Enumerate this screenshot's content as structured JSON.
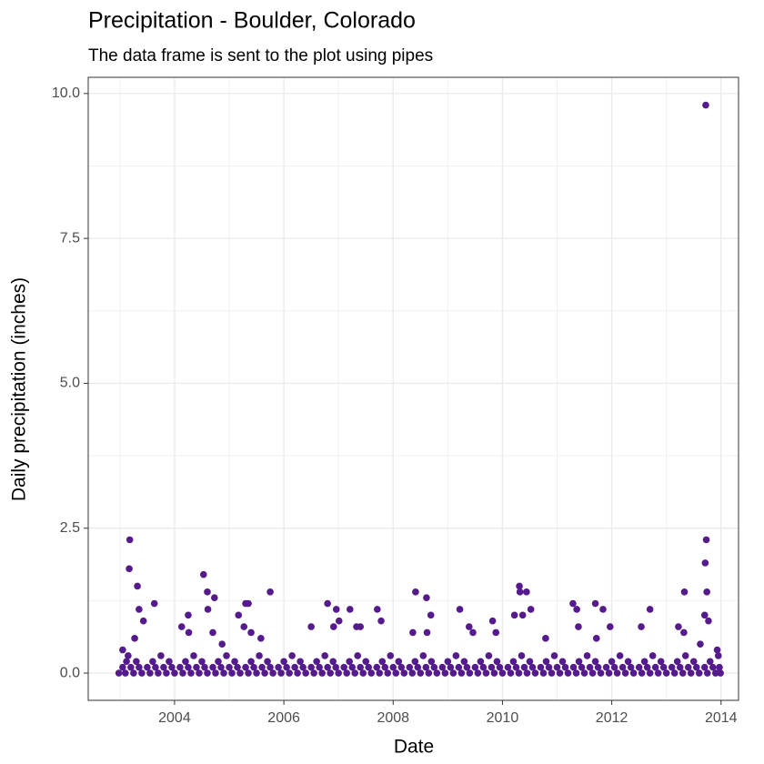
{
  "chart_data": {
    "type": "scatter",
    "title": "Precipitation - Boulder, Colorado",
    "subtitle": "The data frame is sent to the plot using pipes",
    "x_label": "Date",
    "y_label": "Daily precipitation (inches)",
    "color": "#551A8B",
    "grid": true,
    "xlim": [
      2002.42,
      2014.32
    ],
    "ylim": [
      -0.47,
      10.28
    ],
    "xticks": [
      2004,
      2006,
      2008,
      2010,
      2012,
      2014
    ],
    "yticks": [
      {
        "value": 0,
        "label": "0.0"
      },
      2.5,
      {
        "value": 5,
        "label": "5.0"
      },
      7.5,
      {
        "value": 10,
        "label": "10.0"
      }
    ],
    "x": [
      2003.18,
      2003.17,
      2003.32,
      2003.35,
      2003.43,
      2003.63,
      2003.27,
      2003.05,
      2004.53,
      2004.6,
      2004.73,
      2004.61,
      2004.25,
      2004.13,
      2004.26,
      2004.7,
      2004.87,
      2005.17,
      2005.3,
      2005.35,
      2005.27,
      2005.4,
      2005.75,
      2005.58,
      2006.5,
      2006.8,
      2006.96,
      2006.91,
      2007.01,
      2007.21,
      2007.33,
      2007.4,
      2007.71,
      2007.78,
      2008.41,
      2008.36,
      2008.61,
      2008.69,
      2008.62,
      2009.22,
      2009.39,
      2009.46,
      2009.82,
      2009.88,
      2010.31,
      2010.32,
      2010.44,
      2010.22,
      2010.37,
      2010.52,
      2010.79,
      2011.29,
      2011.36,
      2011.39,
      2011.7,
      2011.84,
      2011.97,
      2011.72,
      2012.54,
      2012.7,
      2013.22,
      2013.32,
      2013.33,
      2013.72,
      2013.73,
      2013.71,
      2013.74,
      2013.7,
      2013.77,
      2013.62,
      2013.93,
      2002.98,
      2003.1,
      2003.25,
      2003.4,
      2003.55,
      2003.7,
      2003.85,
      2004.0,
      2004.15,
      2004.3,
      2004.45,
      2004.6,
      2004.75,
      2004.9,
      2005.05,
      2005.2,
      2005.35,
      2005.5,
      2005.65,
      2005.8,
      2005.95,
      2006.1,
      2006.25,
      2006.4,
      2006.55,
      2006.7,
      2006.85,
      2007.0,
      2007.15,
      2007.3,
      2007.45,
      2007.6,
      2007.75,
      2007.9,
      2008.05,
      2008.2,
      2008.35,
      2008.5,
      2008.65,
      2008.8,
      2008.95,
      2009.1,
      2009.25,
      2009.4,
      2009.55,
      2009.7,
      2009.85,
      2010.0,
      2010.15,
      2010.3,
      2010.45,
      2010.6,
      2010.75,
      2010.9,
      2011.05,
      2011.2,
      2011.35,
      2011.5,
      2011.65,
      2011.8,
      2011.95,
      2012.1,
      2012.25,
      2012.4,
      2012.55,
      2012.7,
      2012.85,
      2013.0,
      2013.15,
      2013.3,
      2013.45,
      2013.6,
      2013.75,
      2013.9,
      2013.99,
      2003.05,
      2003.2,
      2003.35,
      2003.5,
      2003.65,
      2003.8,
      2003.95,
      2004.1,
      2004.25,
      2004.4,
      2004.55,
      2004.7,
      2004.85,
      2005.0,
      2005.15,
      2005.3,
      2005.45,
      2005.6,
      2005.75,
      2005.9,
      2006.05,
      2006.2,
      2006.35,
      2006.5,
      2006.65,
      2006.8,
      2006.95,
      2007.1,
      2007.25,
      2007.4,
      2007.55,
      2007.7,
      2007.85,
      2008.0,
      2008.15,
      2008.3,
      2008.45,
      2008.6,
      2008.75,
      2008.9,
      2009.05,
      2009.2,
      2009.35,
      2009.5,
      2009.65,
      2009.8,
      2009.95,
      2010.1,
      2010.25,
      2010.4,
      2010.55,
      2010.7,
      2010.85,
      2011.0,
      2011.15,
      2011.3,
      2011.45,
      2011.6,
      2011.75,
      2011.9,
      2012.05,
      2012.2,
      2012.35,
      2012.5,
      2012.65,
      2012.8,
      2012.95,
      2013.1,
      2013.25,
      2013.4,
      2013.55,
      2013.7,
      2013.85,
      2013.97,
      2003.12,
      2003.3,
      2003.6,
      2003.9,
      2004.2,
      2004.5,
      2004.8,
      2005.1,
      2005.4,
      2005.7,
      2006.0,
      2006.3,
      2006.6,
      2006.9,
      2007.2,
      2007.5,
      2007.8,
      2008.1,
      2008.4,
      2008.7,
      2009.0,
      2009.3,
      2009.6,
      2009.9,
      2010.2,
      2010.5,
      2010.8,
      2011.1,
      2011.4,
      2011.7,
      2012.0,
      2012.3,
      2012.6,
      2012.9,
      2013.2,
      2013.5,
      2013.8,
      2003.15,
      2003.75,
      2004.35,
      2004.95,
      2005.55,
      2006.15,
      2006.75,
      2007.35,
      2007.95,
      2008.55,
      2009.15,
      2009.75,
      2010.35,
      2010.95,
      2011.55,
      2012.15,
      2012.75,
      2013.35,
      2013.95
    ],
    "values": [
      2.3,
      1.8,
      1.5,
      1.1,
      0.9,
      1.2,
      0.6,
      0.4,
      1.7,
      1.4,
      1.3,
      1.1,
      1.0,
      0.8,
      0.7,
      0.7,
      0.5,
      1.0,
      1.2,
      1.2,
      0.8,
      0.7,
      1.4,
      0.6,
      0.8,
      1.2,
      1.1,
      0.8,
      0.9,
      1.1,
      0.8,
      0.8,
      1.1,
      0.9,
      1.4,
      0.7,
      1.3,
      1.0,
      0.7,
      1.1,
      0.8,
      0.7,
      0.9,
      0.7,
      1.5,
      1.4,
      1.4,
      1.0,
      1.0,
      1.1,
      0.6,
      1.2,
      1.1,
      0.8,
      1.2,
      1.1,
      0.8,
      0.6,
      0.8,
      1.1,
      0.8,
      0.7,
      1.4,
      9.8,
      2.3,
      1.9,
      1.4,
      1.0,
      0.9,
      0.5,
      0.4,
      0,
      0,
      0,
      0,
      0,
      0,
      0,
      0,
      0,
      0,
      0,
      0,
      0,
      0,
      0,
      0,
      0,
      0,
      0,
      0,
      0,
      0,
      0,
      0,
      0,
      0,
      0,
      0,
      0,
      0,
      0,
      0,
      0,
      0,
      0,
      0,
      0,
      0,
      0,
      0,
      0,
      0,
      0,
      0,
      0,
      0,
      0,
      0,
      0,
      0,
      0,
      0,
      0,
      0,
      0,
      0,
      0,
      0,
      0,
      0,
      0,
      0,
      0,
      0,
      0,
      0,
      0,
      0,
      0,
      0,
      0,
      0,
      0,
      0,
      0,
      0.1,
      0.1,
      0.1,
      0.1,
      0.1,
      0.1,
      0.1,
      0.1,
      0.1,
      0.1,
      0.1,
      0.1,
      0.1,
      0.1,
      0.1,
      0.1,
      0.1,
      0.1,
      0.1,
      0.1,
      0.1,
      0.1,
      0.1,
      0.1,
      0.1,
      0.1,
      0.1,
      0.1,
      0.1,
      0.1,
      0.1,
      0.1,
      0.1,
      0.1,
      0.1,
      0.1,
      0.1,
      0.1,
      0.1,
      0.1,
      0.1,
      0.1,
      0.1,
      0.1,
      0.1,
      0.1,
      0.1,
      0.1,
      0.1,
      0.1,
      0.1,
      0.1,
      0.1,
      0.1,
      0.1,
      0.1,
      0.1,
      0.1,
      0.1,
      0.1,
      0.1,
      0.1,
      0.1,
      0.1,
      0.1,
      0.1,
      0.1,
      0.1,
      0.1,
      0.1,
      0.1,
      0.1,
      0.1,
      0.1,
      0.2,
      0.2,
      0.2,
      0.2,
      0.2,
      0.2,
      0.2,
      0.2,
      0.2,
      0.2,
      0.2,
      0.2,
      0.2,
      0.2,
      0.2,
      0.2,
      0.2,
      0.2,
      0.2,
      0.2,
      0.2,
      0.2,
      0.2,
      0.2,
      0.2,
      0.2,
      0.2,
      0.2,
      0.2,
      0.2,
      0.2,
      0.2,
      0.2,
      0.2,
      0.2,
      0.2,
      0.2,
      0.3,
      0.3,
      0.3,
      0.3,
      0.3,
      0.3,
      0.3,
      0.3,
      0.3,
      0.3,
      0.3,
      0.3,
      0.3,
      0.3,
      0.3,
      0.3,
      0.3,
      0.3,
      0.3
    ]
  }
}
